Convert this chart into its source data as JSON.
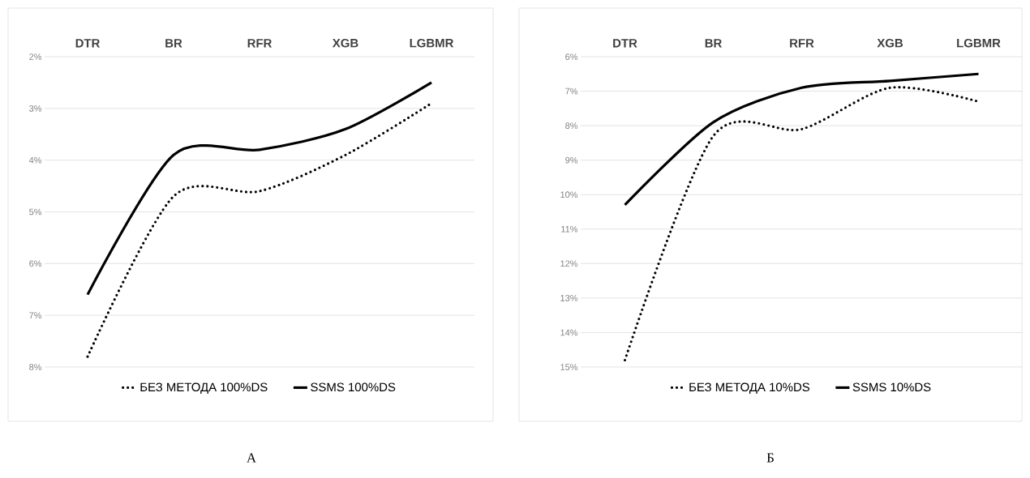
{
  "chart_data": [
    {
      "type": "line",
      "categories": [
        "DTR",
        "BR",
        "RFR",
        "XGB",
        "LGBMR"
      ],
      "ylim": [
        8,
        2
      ],
      "yticks": [
        {
          "value": 2,
          "label": "2%"
        },
        {
          "value": 3,
          "label": "3%"
        },
        {
          "value": 4,
          "label": "4%"
        },
        {
          "value": 5,
          "label": "5%"
        },
        {
          "value": 6,
          "label": "6%"
        },
        {
          "value": 7,
          "label": "7%"
        },
        {
          "value": 8,
          "label": "8%"
        }
      ],
      "grid": "y",
      "legend": "bottom",
      "marker": "none",
      "series": [
        {
          "name": "БЕЗ МЕТОДА 100%DS",
          "color": "#000000",
          "line_style": "dotted",
          "values": [
            7.8,
            4.7,
            4.6,
            3.9,
            2.9
          ]
        },
        {
          "name": "SSMS 100%DS",
          "color": "#000000",
          "line_style": "solid",
          "values": [
            6.6,
            3.9,
            3.8,
            3.4,
            2.5
          ]
        }
      ],
      "annotations": [
        "А"
      ]
    },
    {
      "type": "line",
      "categories": [
        "DTR",
        "BR",
        "RFR",
        "XGB",
        "LGBMR"
      ],
      "ylim": [
        15,
        6
      ],
      "yticks": [
        {
          "value": 6,
          "label": "6%"
        },
        {
          "value": 7,
          "label": "7%"
        },
        {
          "value": 8,
          "label": "8%"
        },
        {
          "value": 9,
          "label": "9%"
        },
        {
          "value": 10,
          "label": "10%"
        },
        {
          "value": 11,
          "label": "11%"
        },
        {
          "value": 12,
          "label": "12%"
        },
        {
          "value": 13,
          "label": "13%"
        },
        {
          "value": 14,
          "label": "14%"
        },
        {
          "value": 15,
          "label": "15%"
        }
      ],
      "grid": "y",
      "legend": "bottom",
      "marker": "none",
      "series": [
        {
          "name": "БЕЗ МЕТОДА 10%DS",
          "color": "#000000",
          "line_style": "dotted",
          "values": [
            14.8,
            8.3,
            8.1,
            6.9,
            7.3
          ]
        },
        {
          "name": "SSMS 10%DS",
          "color": "#000000",
          "line_style": "solid",
          "values": [
            10.3,
            7.9,
            6.9,
            6.7,
            6.5
          ]
        }
      ],
      "annotations": [
        "Б"
      ]
    }
  ]
}
